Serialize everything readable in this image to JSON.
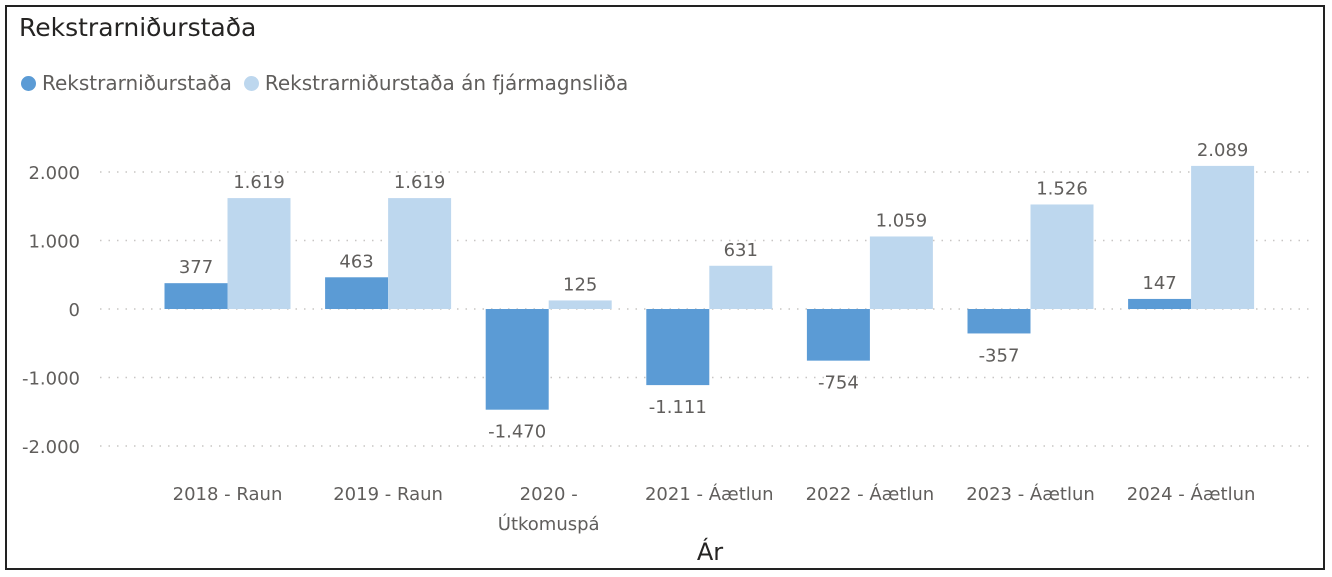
{
  "chart_data": {
    "type": "bar",
    "title": "Rekstrarniðurstaða",
    "xlabel": "Ár",
    "ylabel": "",
    "categories": [
      "2018 - Raun",
      "2019 - Raun",
      "2020 - Útkomuspá",
      "2021 - Áætlun",
      "2022 - Áætlun",
      "2023 - Áætlun",
      "2024 - Áætlun"
    ],
    "category_lines": [
      [
        "2018 - Raun"
      ],
      [
        "2019 - Raun"
      ],
      [
        "2020 -",
        "Útkomuspá"
      ],
      [
        "2021 - Áætlun"
      ],
      [
        "2022 - Áætlun"
      ],
      [
        "2023 - Áætlun"
      ],
      [
        "2024 - Áætlun"
      ]
    ],
    "series": [
      {
        "name": "Rekstrarniðurstaða",
        "color": "#5b9bd5",
        "values": [
          377,
          463,
          -1470,
          -1111,
          -754,
          -357,
          147
        ],
        "labels": [
          "377",
          "463",
          "-1.470",
          "-1.111",
          "-754",
          "-357",
          "147"
        ]
      },
      {
        "name": "Rekstrarniðurstaða án fjármagnsliða",
        "color": "#bdd7ee",
        "values": [
          1619,
          1619,
          125,
          631,
          1059,
          1526,
          2089
        ],
        "labels": [
          "1.619",
          "1.619",
          "125",
          "631",
          "1.059",
          "1.526",
          "2.089"
        ]
      }
    ],
    "yticks": [
      2000,
      1000,
      0,
      -1000,
      -2000
    ],
    "ytick_labels": [
      "2.000",
      "1.000",
      "0",
      "-1.000",
      "-2.000"
    ],
    "ylim": [
      -2000,
      2000
    ],
    "grid": true,
    "legend_position": "top-left"
  }
}
